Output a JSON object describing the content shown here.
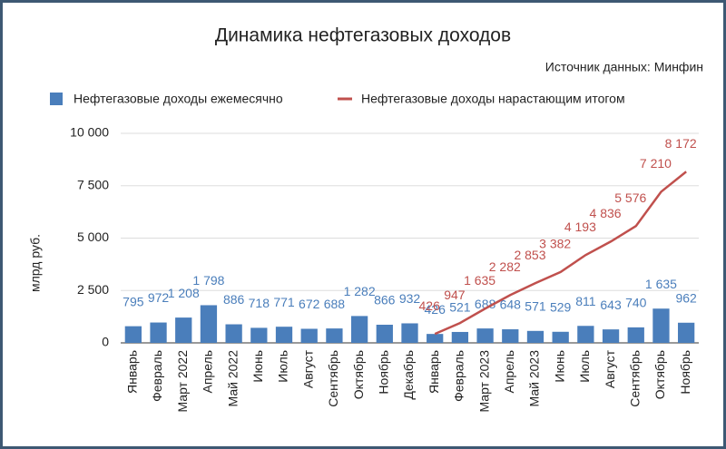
{
  "chart_data": {
    "type": "bar",
    "title": "Динамика нефтегазовых доходов",
    "subtitle": "Источник данных: Минфин",
    "y_label": "млрд руб.",
    "categories": [
      "Январь",
      "Февраль",
      "Март 2022",
      "Апрель",
      "Май 2022",
      "Июнь",
      "Июль",
      "Август",
      "Сентябрь",
      "Октябрь",
      "Ноябрь",
      "Декабрь",
      "Январь",
      "Февраль",
      "Март 2023",
      "Апрель",
      "Май 2023",
      "Июнь",
      "Июль",
      "Август",
      "Сентябрь",
      "Октябрь",
      "Ноябрь"
    ],
    "series": [
      {
        "name": "Нефтегазовые доходы ежемесячно",
        "type": "bar",
        "color": "#4a7ebb",
        "values": [
          795,
          972,
          1208,
          1798,
          886,
          718,
          771,
          672,
          688,
          1282,
          866,
          932,
          426,
          521,
          688,
          648,
          571,
          529,
          811,
          643,
          740,
          1635,
          962
        ],
        "value_labels": [
          "795",
          "972",
          "1 208",
          "1 798",
          "886",
          "718",
          "771",
          "672",
          "688",
          "1 282",
          "866",
          "932",
          "426",
          "521",
          "688",
          "648",
          "571",
          "529",
          "811",
          "643",
          "740",
          "1 635",
          "962"
        ]
      },
      {
        "name": "Нефтегазовые доходы нарастающим итогом",
        "type": "line",
        "color": "#c0504d",
        "values": [
          null,
          null,
          null,
          null,
          null,
          null,
          null,
          null,
          null,
          null,
          null,
          null,
          426,
          947,
          1635,
          2282,
          2853,
          3382,
          4193,
          4836,
          5576,
          7210,
          8172
        ],
        "value_labels": [
          null,
          null,
          null,
          null,
          null,
          null,
          null,
          null,
          null,
          null,
          null,
          null,
          "426",
          "947",
          "1 635",
          "2 282",
          "2 853",
          "3 382",
          "4 193",
          "4 836",
          "5 576",
          "7 210",
          "8 172"
        ]
      }
    ],
    "ylim": [
      0,
      10000
    ],
    "yticks": [
      0,
      {
        "value": 2500,
        "label": "2 500"
      },
      {
        "value": 5000,
        "label": "5 000"
      },
      {
        "value": 7500,
        "label": "7 500"
      },
      {
        "value": 10000,
        "label": "10 000"
      }
    ],
    "grid": true,
    "legend": "top"
  }
}
